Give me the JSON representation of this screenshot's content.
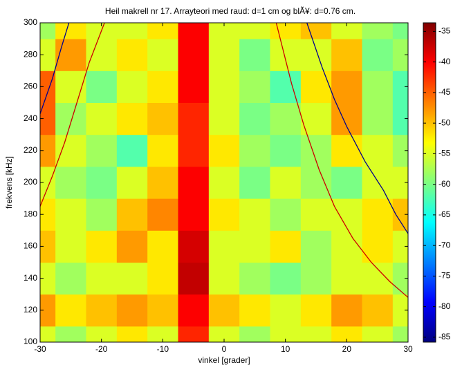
{
  "chart_data": {
    "type": "heatmap",
    "title": "Heil makrell nr 17. Arrayteori med raud: d=1 cm og blÃ¥: d=0.76 cm.",
    "x_label": "vinkel [grader]",
    "y_label": "frekvens [kHz]",
    "x": [
      -30,
      -25,
      -20,
      -15,
      -10,
      -5,
      0,
      5,
      10,
      15,
      20,
      25,
      30
    ],
    "y": [
      100,
      120,
      140,
      160,
      180,
      200,
      220,
      240,
      260,
      280,
      300
    ],
    "z": [
      [
        -55,
        -58,
        -55,
        -52,
        -55,
        -42,
        -55,
        -58,
        -55,
        -55,
        -52,
        -55,
        -58
      ],
      [
        -48,
        -52,
        -50,
        -48,
        -50,
        -40,
        -50,
        -52,
        -55,
        -52,
        -48,
        -50,
        -55
      ],
      [
        -55,
        -58,
        -55,
        -55,
        -52,
        -37,
        -55,
        -58,
        -60,
        -58,
        -55,
        -55,
        -58
      ],
      [
        -50,
        -55,
        -52,
        -48,
        -52,
        -38,
        -55,
        -55,
        -52,
        -58,
        -55,
        -52,
        -55
      ],
      [
        -52,
        -55,
        -58,
        -50,
        -47,
        -40,
        -52,
        -55,
        -58,
        -55,
        -55,
        -52,
        -50
      ],
      [
        -55,
        -58,
        -60,
        -55,
        -50,
        -40,
        -55,
        -60,
        -55,
        -58,
        -60,
        -55,
        -55
      ],
      [
        -48,
        -55,
        -58,
        -62,
        -52,
        -42,
        -52,
        -58,
        -60,
        -58,
        -52,
        -55,
        -58
      ],
      [
        -45,
        -58,
        -55,
        -52,
        -50,
        -42,
        -55,
        -60,
        -58,
        -55,
        -48,
        -58,
        -62
      ],
      [
        -45,
        -55,
        -60,
        -55,
        -52,
        -40,
        -55,
        -58,
        -62,
        -52,
        -48,
        -58,
        -62
      ],
      [
        -55,
        -48,
        -55,
        -52,
        -55,
        -40,
        -55,
        -60,
        -55,
        -55,
        -50,
        -60,
        -58
      ],
      [
        -58,
        -52,
        -55,
        -55,
        -52,
        -40,
        -55,
        -55,
        -52,
        -50,
        -55,
        -58,
        -60
      ]
    ],
    "xlim": [
      -30,
      30
    ],
    "ylim": [
      100,
      300
    ],
    "xticks": [
      -30,
      -20,
      -10,
      0,
      10,
      20,
      30
    ],
    "yticks": [
      100,
      120,
      140,
      160,
      180,
      200,
      220,
      240,
      260,
      280,
      300
    ],
    "zlim": [
      -85.8,
      -33.6
    ],
    "zticks": [
      -85,
      -80,
      -75,
      -70,
      -65,
      -60,
      -55,
      -50,
      -45,
      -40,
      -35
    ],
    "colormap": "jet",
    "curves": [
      {
        "color": "#cc0000",
        "x": [
          -30,
          -28,
          -26,
          -24,
          -22,
          -19.5
        ],
        "y": [
          185,
          204,
          225,
          250,
          275,
          300
        ]
      },
      {
        "color": "#00008b",
        "x": [
          -30,
          -28,
          -26.5,
          -25.3
        ],
        "y": [
          243,
          265,
          285,
          300
        ]
      },
      {
        "color": "#cc0000",
        "x": [
          8.5,
          11,
          13,
          15.5,
          18,
          21,
          24,
          27,
          30
        ],
        "y": [
          300,
          262,
          236,
          208,
          185,
          165,
          150,
          138,
          128
        ]
      },
      {
        "color": "#00008b",
        "x": [
          13.5,
          16,
          18,
          20,
          23,
          26,
          28,
          30
        ],
        "y": [
          300,
          272,
          252,
          235,
          213,
          195,
          180,
          168
        ]
      }
    ]
  }
}
